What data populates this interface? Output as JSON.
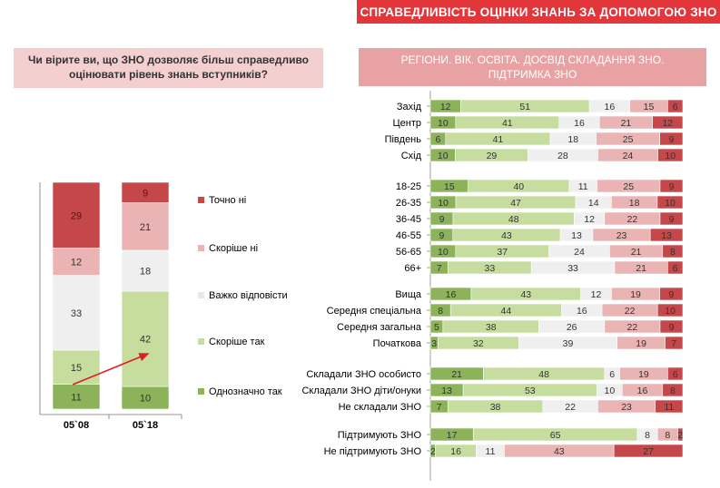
{
  "banner": {
    "title": "СПРАВЕДЛИВІСТЬ ОЦІНКИ ЗНАНЬ ЗА ДОПОМОГОЮ ЗНО"
  },
  "question": {
    "text": "Чи вірите ви, що ЗНО дозволяє більш справедливо оцінювати рівень знань вступників?"
  },
  "right_header": {
    "text": "РЕГІОНИ. ВІК. ОСВІТА. ДОСВІД  СКЛАДАННЯ ЗНО. ПІДТРИМКА ЗНО"
  },
  "colors": {
    "definitely_yes": "#8db35a",
    "rather_yes": "#c6dd9f",
    "hard_to_say": "#efefef",
    "rather_no": "#ebb4b4",
    "definitely_no": "#c6474a",
    "arrow": "#e02020"
  },
  "chart_data": [
    {
      "type": "bar",
      "stacked": true,
      "orientation": "vertical",
      "categories": [
        "05`08",
        "05`18"
      ],
      "series": [
        {
          "name": "Однозначно так",
          "values": [
            11,
            10
          ]
        },
        {
          "name": "Скоріше  так",
          "values": [
            15,
            42
          ]
        },
        {
          "name": "Важко відповісти",
          "values": [
            33,
            18
          ]
        },
        {
          "name": "Скоріше  ні",
          "values": [
            12,
            21
          ]
        },
        {
          "name": "Точно ні",
          "values": [
            29,
            9
          ]
        }
      ],
      "legend": "right"
    },
    {
      "type": "bar",
      "stacked": true,
      "orientation": "horizontal",
      "series_order": [
        "Однозначно так",
        "Скоріше  так",
        "Важко відповісти",
        "Скоріше  ні",
        "Точно ні"
      ],
      "groups": [
        {
          "rows": [
            {
              "label": "Захід",
              "values": [
                12,
                51,
                16,
                15,
                6
              ]
            },
            {
              "label": "Центр",
              "values": [
                10,
                41,
                16,
                21,
                12
              ]
            },
            {
              "label": "Південь",
              "values": [
                6,
                41,
                18,
                25,
                9
              ]
            },
            {
              "label": "Схід",
              "values": [
                10,
                29,
                28,
                24,
                10
              ]
            }
          ]
        },
        {
          "rows": [
            {
              "label": "18-25",
              "values": [
                15,
                40,
                11,
                25,
                9
              ]
            },
            {
              "label": "26-35",
              "values": [
                10,
                47,
                14,
                18,
                10
              ]
            },
            {
              "label": "36-45",
              "values": [
                9,
                48,
                12,
                22,
                9
              ]
            },
            {
              "label": "46-55",
              "values": [
                9,
                43,
                13,
                23,
                13
              ]
            },
            {
              "label": "56-65",
              "values": [
                10,
                37,
                24,
                21,
                8
              ]
            },
            {
              "label": "66+",
              "values": [
                7,
                33,
                33,
                21,
                6
              ]
            }
          ]
        },
        {
          "rows": [
            {
              "label": "Вища",
              "values": [
                16,
                43,
                12,
                19,
                9
              ]
            },
            {
              "label": "Середня спеціальна",
              "values": [
                8,
                44,
                16,
                22,
                10
              ]
            },
            {
              "label": "Середня загальна",
              "values": [
                5,
                38,
                26,
                22,
                9
              ]
            },
            {
              "label": "Початкова",
              "values": [
                3,
                32,
                39,
                19,
                7
              ]
            }
          ]
        },
        {
          "rows": [
            {
              "label": "Складали ЗНО особисто",
              "values": [
                21,
                48,
                6,
                19,
                6
              ]
            },
            {
              "label": "Складали ЗНО діти/онуки",
              "values": [
                13,
                53,
                10,
                16,
                8
              ]
            },
            {
              "label": "Не складали ЗНО",
              "values": [
                7,
                38,
                22,
                23,
                11
              ]
            }
          ]
        },
        {
          "rows": [
            {
              "label": "Підтримують ЗНО",
              "values": [
                17,
                65,
                8,
                8,
                2
              ]
            },
            {
              "label": "Не підтримують ЗНО",
              "values": [
                2,
                16,
                11,
                43,
                27
              ]
            }
          ]
        }
      ]
    }
  ]
}
